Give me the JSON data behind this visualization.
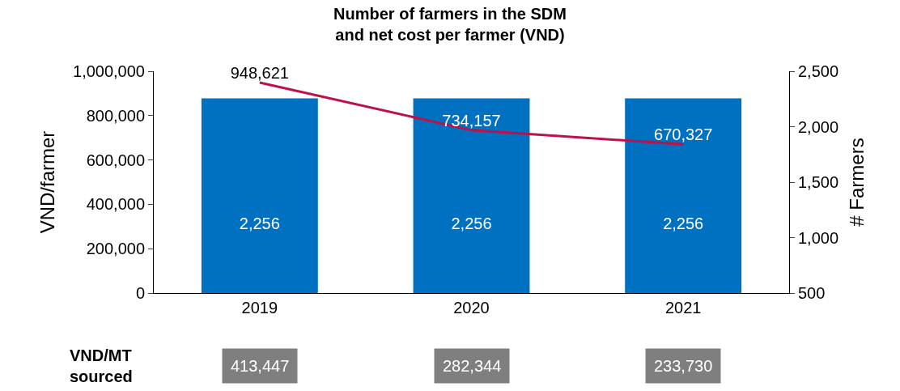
{
  "chart_data": {
    "type": "bar",
    "title": "Number of farmers in the SDM\nand net cost per farmer (VND)",
    "ylabel": "VND/farmer",
    "y2label": "# Farmers",
    "categories": [
      "2019",
      "2020",
      "2021"
    ],
    "series": [
      {
        "axis": "y2",
        "color": "#0070c0",
        "values": [
          2256,
          2256,
          2256
        ],
        "value_labels": [
          "2,256",
          "2,256",
          "2,256"
        ]
      },
      {
        "type": "line",
        "color": "#c0104a",
        "values": [
          948621,
          734157,
          670327
        ],
        "value_labels": [
          "948,621",
          "734,157",
          "670,327"
        ]
      }
    ],
    "ylim": [
      0,
      1000000
    ],
    "yticks": [
      {
        "value": 0,
        "label": "0"
      },
      {
        "value": 200000,
        "label": "200,000"
      },
      {
        "value": 400000,
        "label": "400,000"
      },
      {
        "value": 600000,
        "label": "600,000"
      },
      {
        "value": 800000,
        "label": "800,000"
      },
      {
        "value": 1000000,
        "label": "1,000,000"
      }
    ],
    "y2lim": [
      500,
      2500
    ],
    "y2ticks": [
      500,
      {
        "value": 1000,
        "label": "1,000"
      },
      {
        "value": 1500,
        "label": "1,500"
      },
      {
        "value": 2000,
        "label": "2,000"
      },
      {
        "value": 2500,
        "label": "2,500"
      }
    ],
    "annotations": [
      "VND/MT\nsourced",
      "413,447",
      "282,344",
      "233,730"
    ],
    "legend": false,
    "marker": "none"
  }
}
